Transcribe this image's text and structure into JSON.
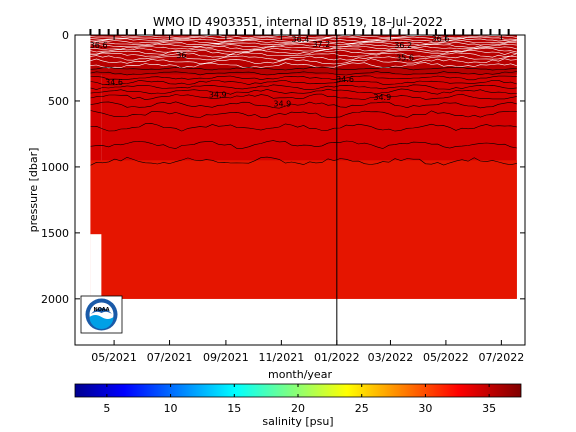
{
  "chart_data": {
    "type": "heatmap",
    "title": "WMO ID 4903351, internal ID 8519, 18–Jul–2022",
    "xlabel": "month/year",
    "ylabel": "pressure [dbar]",
    "x_ticks": [
      "05/2021",
      "07/2021",
      "09/2021",
      "11/2021",
      "01/2022",
      "03/2022",
      "05/2022",
      "07/2022"
    ],
    "y_ticks": [
      0,
      500,
      1000,
      1500,
      2000
    ],
    "ylim": [
      2350,
      0
    ],
    "y_reversed": true,
    "grid": false,
    "field_colors": {
      "background": "#ffffff",
      "main": "#d40000",
      "deep": "#e51500",
      "surface": "#b80000"
    },
    "data_extent": {
      "start": "2021-04-05",
      "end": "2022-07-18",
      "max_pressure_early": 1510,
      "max_pressure": 2000,
      "deep_profiles_from": "2021-04-17"
    },
    "year_marker": "2022-01-01",
    "contour_labels": [
      {
        "text": "36.6",
        "date": "2021-04-14",
        "p": 75
      },
      {
        "text": "36",
        "date": "2021-07-14",
        "p": 150
      },
      {
        "text": "36.4",
        "date": "2021-11-22",
        "p": 30
      },
      {
        "text": "37.2",
        "date": "2021-12-15",
        "p": 70
      },
      {
        "text": "36.2",
        "date": "2022-03-15",
        "p": 75
      },
      {
        "text": "36.6",
        "date": "2022-04-25",
        "p": 25
      },
      {
        "text": "35.6",
        "date": "2022-03-17",
        "p": 170
      },
      {
        "text": "34.6",
        "date": "2021-05-01",
        "p": 355
      },
      {
        "text": "34.6",
        "date": "2022-01-10",
        "p": 335
      },
      {
        "text": "34.9",
        "date": "2021-08-23",
        "p": 450
      },
      {
        "text": "34.9",
        "date": "2021-11-02",
        "p": 520
      },
      {
        "text": "34.9",
        "date": "2022-02-20",
        "p": 470
      }
    ],
    "colorbar": {
      "label": "salinity [psu]",
      "range": [
        2.5,
        37.5
      ],
      "ticks": [
        5,
        10,
        15,
        20,
        25,
        30,
        35
      ],
      "colormap": "jet"
    }
  },
  "logo": {
    "name": "NOAA"
  }
}
